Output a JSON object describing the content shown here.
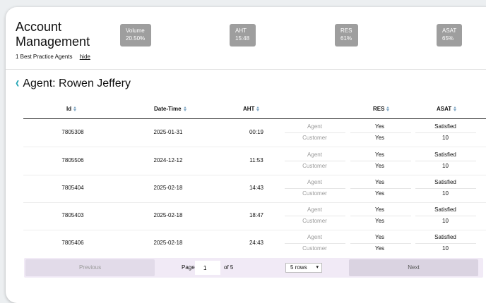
{
  "header": {
    "title": "Account Management",
    "subtitle": "1 Best Practice Agents",
    "hide_label": "hide",
    "kpis": [
      {
        "label": "Volume",
        "value": "20.50%"
      },
      {
        "label": "AHT",
        "value": "15:48"
      },
      {
        "label": "RES",
        "value": "61%"
      },
      {
        "label": "ASAT",
        "value": "65%"
      }
    ]
  },
  "agent": {
    "title": "Agent: Rowen Jeffery"
  },
  "table": {
    "columns": {
      "id": "Id",
      "datetime": "Date-Time",
      "aht": "AHT",
      "res": "RES",
      "asat": "ASAT"
    },
    "rows": [
      {
        "id": "7805308",
        "datetime": "2025-01-31",
        "aht": "00:19",
        "agent_label": "Agent",
        "customer_label": "Customer",
        "res_agent": "Yes",
        "res_customer": "Yes",
        "asat_agent": "Satisfied",
        "asat_customer": "10"
      },
      {
        "id": "7805506",
        "datetime": "2024-12-12",
        "aht": "11:53",
        "agent_label": "Agent",
        "customer_label": "Customer",
        "res_agent": "Yes",
        "res_customer": "Yes",
        "asat_agent": "Satisfied",
        "asat_customer": "10"
      },
      {
        "id": "7805404",
        "datetime": "2025-02-18",
        "aht": "14:43",
        "agent_label": "Agent",
        "customer_label": "Customer",
        "res_agent": "Yes",
        "res_customer": "Yes",
        "asat_agent": "Satisfied",
        "asat_customer": "10"
      },
      {
        "id": "7805403",
        "datetime": "2025-02-18",
        "aht": "18:47",
        "agent_label": "Agent",
        "customer_label": "Customer",
        "res_agent": "Yes",
        "res_customer": "Yes",
        "asat_agent": "Satisfied",
        "asat_customer": "10"
      },
      {
        "id": "7805406",
        "datetime": "2025-02-18",
        "aht": "24:43",
        "agent_label": "Agent",
        "customer_label": "Customer",
        "res_agent": "Yes",
        "res_customer": "Yes",
        "asat_agent": "Satisfied",
        "asat_customer": "10"
      }
    ]
  },
  "pagination": {
    "previous_label": "Previous",
    "page_label": "Page",
    "page_value": "1",
    "of_label": "of 5",
    "rows_option": "5 rows",
    "next_label": "Next"
  },
  "colors": {
    "accent": "#26a6b5",
    "kpi_bg": "#9e9e9e",
    "pager_bg": "#f1eaf6"
  },
  "icons": {
    "back": "chevron-left-icon",
    "sort": "sort-icon",
    "select": "chevron-down-icon"
  }
}
